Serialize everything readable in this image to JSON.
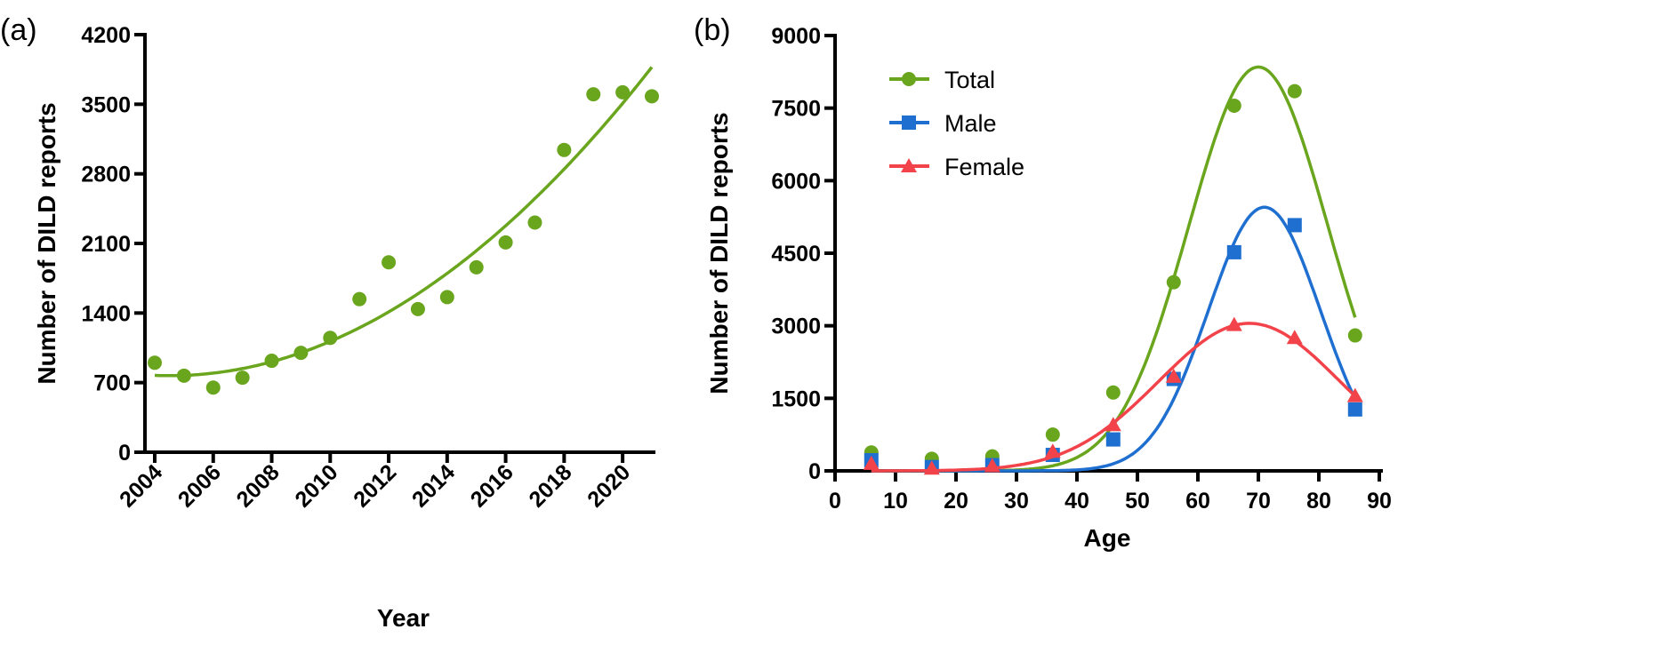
{
  "chart_data": [
    {
      "panel_label": "(a)",
      "type": "scatter",
      "xlabel": "Year",
      "ylabel": "Number of DILD reports",
      "xlim": [
        2004,
        2021
      ],
      "ylim": [
        0,
        4200
      ],
      "xticks": [
        "2004",
        "2006",
        "2008",
        "2010",
        "2012",
        "2014",
        "2016",
        "2018",
        "2020"
      ],
      "yticks": [
        "0",
        "700",
        "1400",
        "2100",
        "2800",
        "3500",
        "4200"
      ],
      "grid": false,
      "color": "#6aa51e",
      "fit": "quadratic trend curve",
      "x": [
        2004,
        2005,
        2006,
        2007,
        2008,
        2009,
        2010,
        2011,
        2012,
        2013,
        2014,
        2015,
        2016,
        2017,
        2018,
        2019,
        2020,
        2021
      ],
      "y": [
        900,
        770,
        650,
        750,
        920,
        1000,
        1150,
        1540,
        1910,
        1440,
        1560,
        1860,
        2110,
        2310,
        3040,
        3600,
        3620,
        3580
      ]
    },
    {
      "panel_label": "(b)",
      "type": "scatter",
      "xlabel": "Age",
      "ylabel": "Number of DILD reports",
      "xlim": [
        0,
        90
      ],
      "ylim": [
        0,
        9000
      ],
      "xticks": [
        "0",
        "10",
        "20",
        "30",
        "40",
        "50",
        "60",
        "70",
        "80",
        "90"
      ],
      "yticks": [
        "0",
        "1500",
        "3000",
        "4500",
        "6000",
        "7500",
        "9000"
      ],
      "grid": false,
      "legend_position": "top-left",
      "fit": "gaussian curves",
      "x": [
        6,
        16,
        26,
        36,
        46,
        56,
        66,
        76,
        86
      ],
      "series": [
        {
          "name": "Total",
          "color": "#6aa51e",
          "marker": "circle",
          "values": [
            380,
            250,
            300,
            750,
            1620,
            3900,
            7550,
            7850,
            2800
          ]
        },
        {
          "name": "Male",
          "color": "#1f6fd1",
          "marker": "square",
          "values": [
            220,
            80,
            120,
            330,
            650,
            1900,
            4520,
            5080,
            1270
          ]
        },
        {
          "name": "Female",
          "color": "#f2434a",
          "marker": "triangle",
          "values": [
            150,
            50,
            100,
            400,
            950,
            1950,
            3020,
            2750,
            1550
          ]
        }
      ]
    }
  ]
}
